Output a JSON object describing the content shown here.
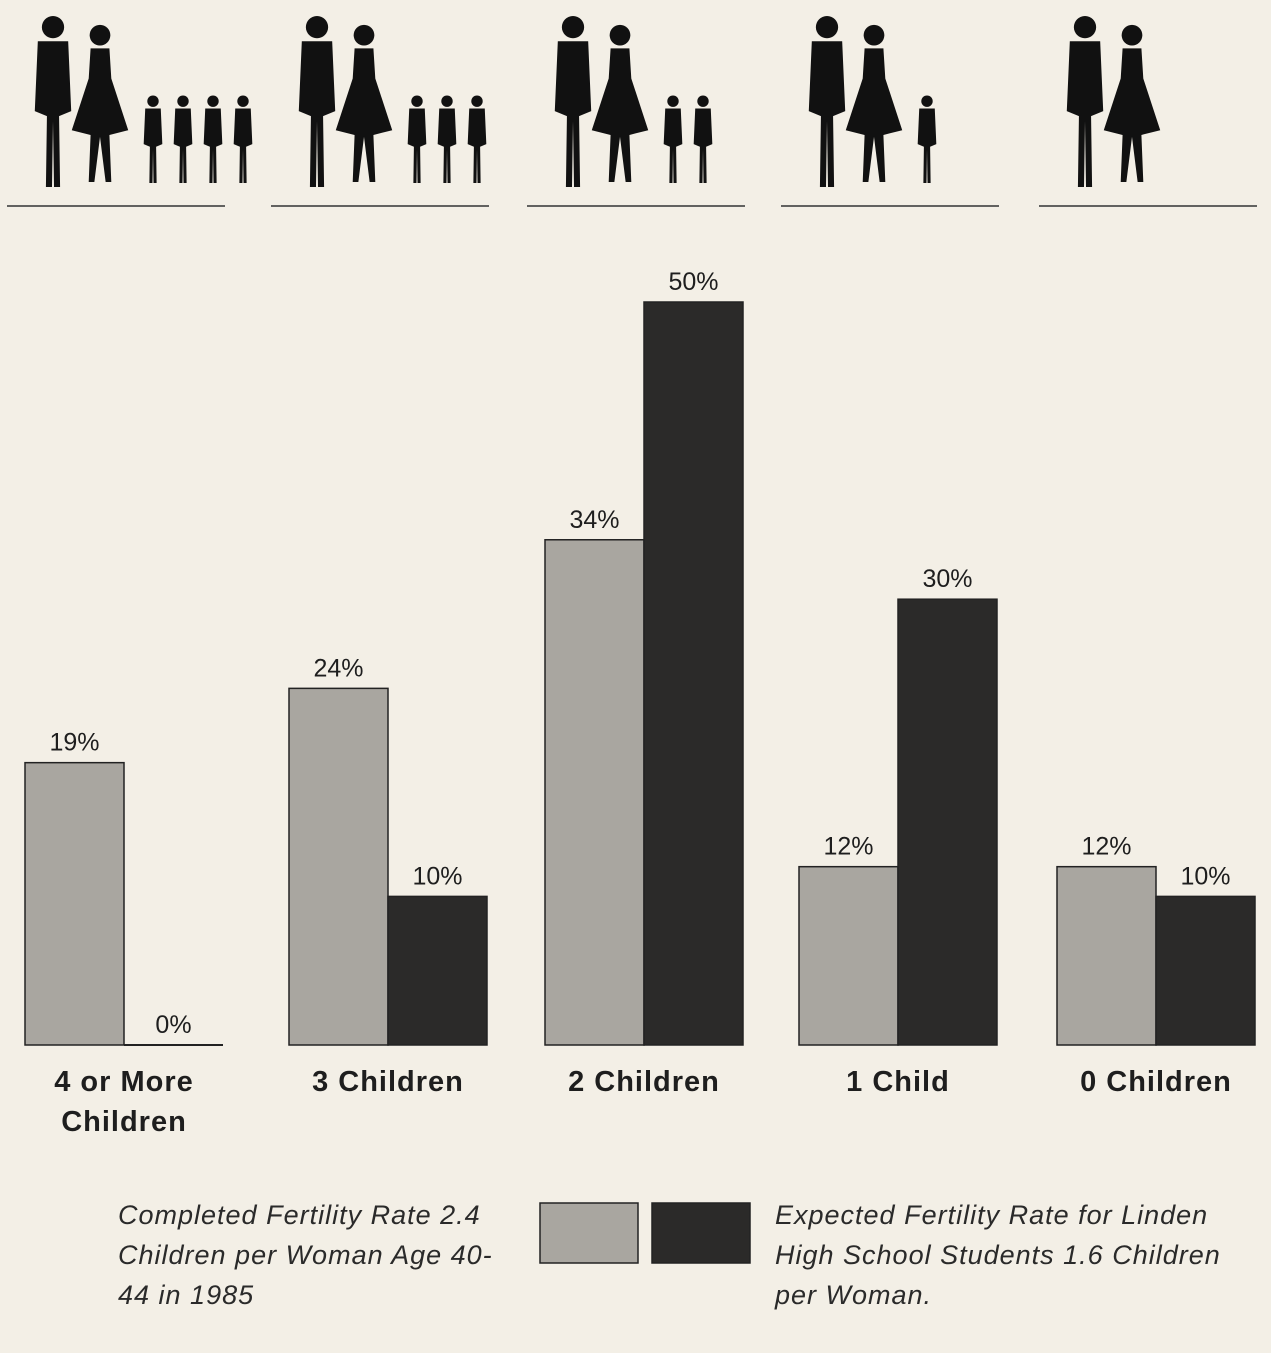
{
  "chart_data": {
    "type": "bar",
    "categories": [
      "4 or More Children",
      "3 Children",
      "2 Children",
      "1 Child",
      "0 Children"
    ],
    "series": [
      {
        "name": "Completed Fertility Rate 2.4 Children per Woman Age 40-44 in 1985",
        "color": "#a9a6a0",
        "values": [
          19,
          24,
          34,
          12,
          12
        ],
        "value_labels": [
          "19%",
          "24%",
          "34%",
          "12%",
          "12%"
        ]
      },
      {
        "name": "Expected Fertility Rate for Linden High School Students 1.6 Children per Woman.",
        "color": "#2b2a29",
        "values": [
          0,
          10,
          50,
          30,
          10
        ],
        "value_labels": [
          "0%",
          "10%",
          "50%",
          "30%",
          "10%"
        ]
      }
    ]
  }
}
